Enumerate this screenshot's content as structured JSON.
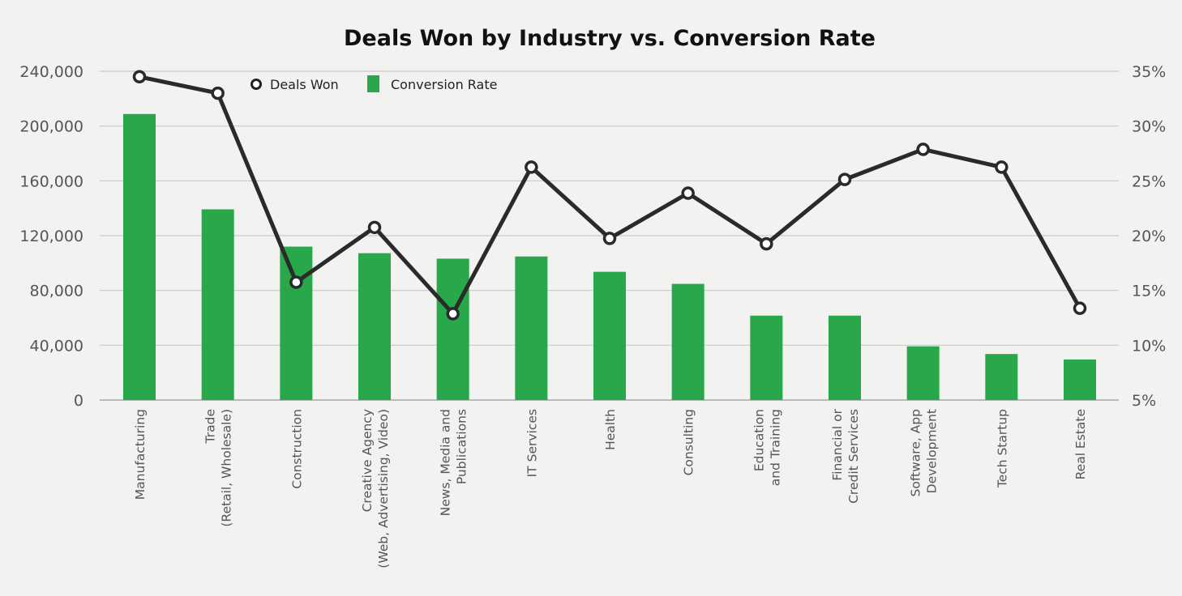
{
  "chart_data": {
    "type": "bar+line",
    "title": "Deals Won by Industry vs. Conversion Rate",
    "categories": [
      [
        "Manufacturing"
      ],
      [
        "Trade",
        "(Retail, Wholesale)"
      ],
      [
        "Construction"
      ],
      [
        "Creative Agency",
        "(Web, Advertising, Video)"
      ],
      [
        "News, Media and",
        "Publications"
      ],
      [
        "IT Services"
      ],
      [
        "Health"
      ],
      [
        "Consulting"
      ],
      [
        "Education",
        "and Training"
      ],
      [
        "Financial or",
        "Credit Services"
      ],
      [
        "Software, App",
        "Development"
      ],
      [
        "Tech Startup"
      ],
      [
        "Real Estate"
      ]
    ],
    "series": [
      {
        "name": "Deals Won",
        "type": "line",
        "axis": "left",
        "color": "#2a2a2a",
        "values": [
          236000,
          224000,
          86000,
          126000,
          63000,
          170000,
          118000,
          151000,
          114000,
          161000,
          183000,
          170000,
          67000
        ]
      },
      {
        "name": "Conversion Rate",
        "type": "bar",
        "axis": "right",
        "color": "#28a84a",
        "values": [
          31.1,
          22.4,
          19.0,
          18.4,
          17.9,
          18.1,
          16.7,
          15.6,
          12.7,
          12.7,
          9.9,
          9.2,
          8.7
        ]
      }
    ],
    "y_left": {
      "range": [
        0,
        240000
      ],
      "ticks": [
        "0",
        "40,000",
        "80,000",
        "120,000",
        "160,000",
        "200,000",
        "240,000"
      ]
    },
    "y_right": {
      "range": [
        5,
        35
      ],
      "ticks": [
        "5%",
        "10%",
        "15%",
        "20%",
        "25%",
        "30%",
        "35%"
      ]
    },
    "grid": true,
    "legend": "top-left"
  }
}
